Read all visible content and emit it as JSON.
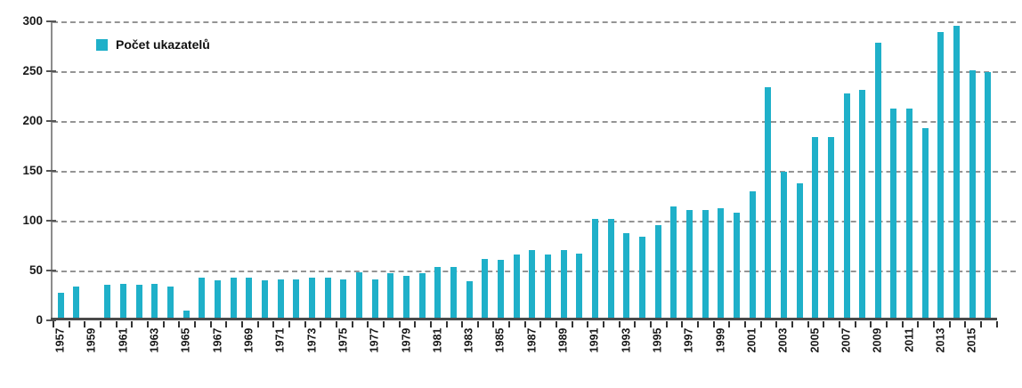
{
  "chart_data": {
    "type": "bar",
    "title": "",
    "legend_label": "Počet ukazatelů",
    "legend_position": "top-left-inside",
    "bar_color": "#1fb0c9",
    "grid": "horizontal-dashed",
    "grid_color": "#949494",
    "axis_color": "#8c8c8c",
    "baseline_color": "#4a4a4a",
    "text_color": "#1a1a1a",
    "ylim": [
      0,
      300
    ],
    "yticks": [
      0,
      50,
      100,
      150,
      200,
      250,
      300
    ],
    "xlabel": "",
    "ylabel": "",
    "categories": [
      "1957",
      "1958",
      "1959",
      "1960",
      "1961",
      "1962",
      "1963",
      "1964",
      "1965",
      "1966",
      "1967",
      "1968",
      "1969",
      "1970",
      "1971",
      "1972",
      "1973",
      "1974",
      "1975",
      "1976",
      "1977",
      "1978",
      "1979",
      "1980",
      "1981",
      "1982",
      "1983",
      "1984",
      "1985",
      "1986",
      "1987",
      "1988",
      "1989",
      "1990",
      "1991",
      "1992",
      "1993",
      "1994",
      "1995",
      "1996",
      "1997",
      "1998",
      "1999",
      "2000",
      "2001",
      "2002",
      "2003",
      "2004",
      "2005",
      "2006",
      "2007",
      "2008",
      "2009",
      "2010",
      "2011",
      "2012",
      "2013",
      "2014",
      "2015",
      "2016"
    ],
    "values": [
      27,
      33,
      0,
      35,
      36,
      35,
      36,
      33,
      9,
      42,
      39,
      42,
      42,
      39,
      40,
      40,
      42,
      42,
      40,
      47,
      40,
      46,
      44,
      46,
      53,
      53,
      38,
      61,
      60,
      65,
      70,
      65,
      70,
      66,
      101,
      101,
      87,
      83,
      95,
      113,
      110,
      110,
      112,
      107,
      129,
      233,
      148,
      137,
      183,
      183,
      227,
      230,
      278,
      212,
      212,
      192,
      288,
      295,
      250,
      248
    ],
    "x_labels_shown": [
      "1957",
      "1959",
      "1961",
      "1963",
      "1965",
      "1967",
      "1969",
      "1971",
      "1973",
      "1975",
      "1977",
      "1979",
      "1981",
      "1983",
      "1985",
      "1987",
      "1989",
      "1991",
      "1993",
      "1995",
      "1997",
      "1999",
      "2001",
      "2003",
      "2005",
      "2007",
      "2009",
      "2011",
      "2013",
      "2015"
    ]
  }
}
